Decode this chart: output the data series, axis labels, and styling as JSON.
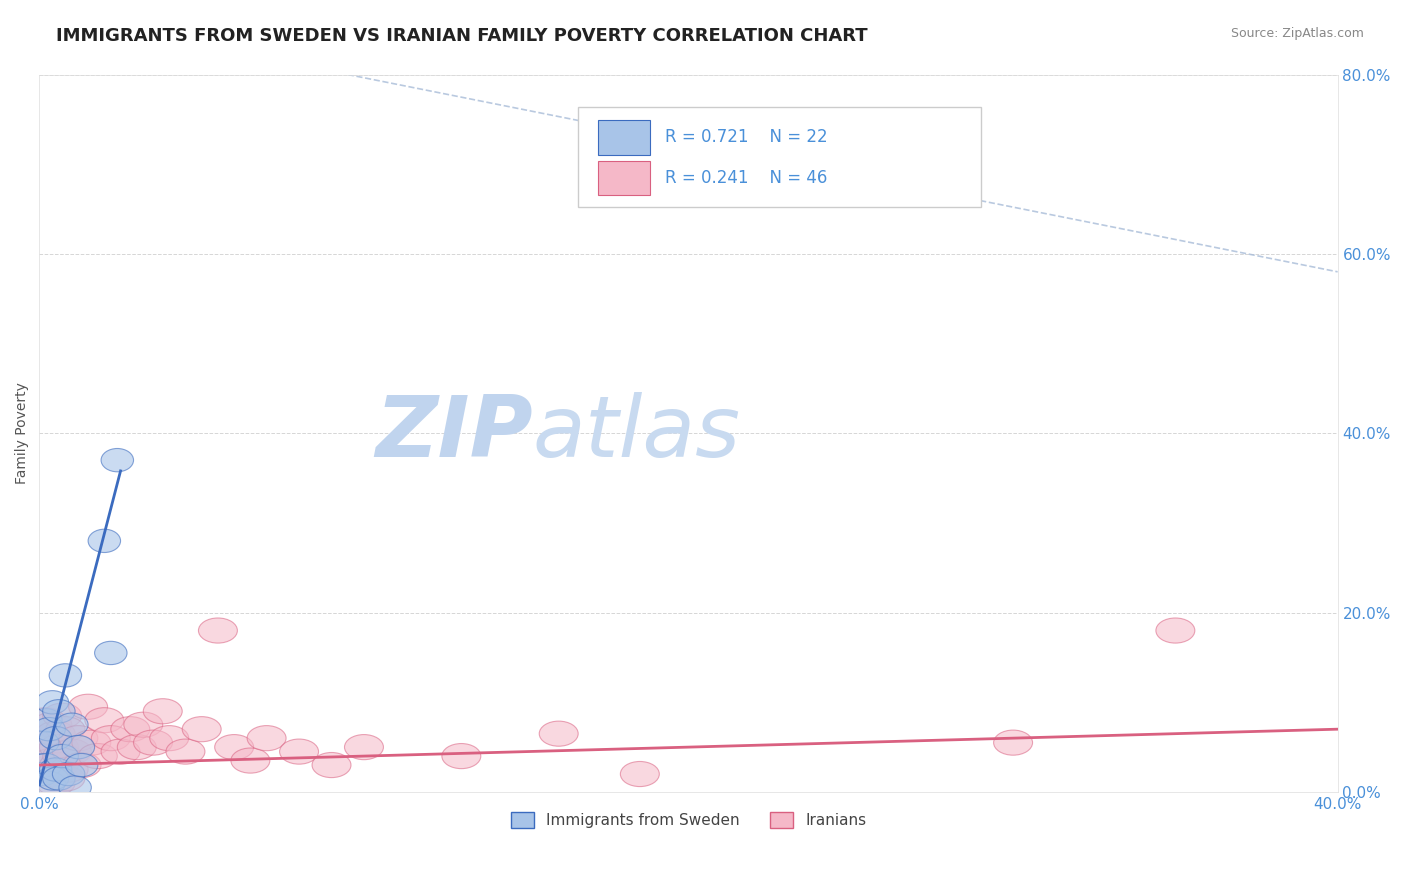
{
  "title": "IMMIGRANTS FROM SWEDEN VS IRANIAN FAMILY POVERTY CORRELATION CHART",
  "source_text": "Source: ZipAtlas.com",
  "ylabel": "Family Poverty",
  "xlim": [
    0.0,
    0.4
  ],
  "ylim": [
    0.0,
    0.8
  ],
  "xticks": [
    0.0,
    0.1,
    0.2,
    0.3,
    0.4
  ],
  "yticks": [
    0.0,
    0.2,
    0.4,
    0.6,
    0.8
  ],
  "xtick_labels": [
    "0.0%",
    "",
    "",
    "",
    "40.0%"
  ],
  "ytick_labels_right": [
    "0.0%",
    "20.0%",
    "40.0%",
    "60.0%",
    "80.0%"
  ],
  "legend_label1": "Immigrants from Sweden",
  "legend_label2": "Iranians",
  "r1": "0.721",
  "n1": "22",
  "r2": "0.241",
  "n2": "46",
  "color_blue": "#a8c4e8",
  "color_pink": "#f5b8c8",
  "color_line_blue": "#3b6bbf",
  "color_line_pink": "#d96080",
  "color_dashed": "#a8bcd8",
  "watermark_zip": "ZIP",
  "watermark_atlas": "atlas",
  "watermark_color_zip": "#c5d8f0",
  "watermark_color_atlas": "#c5d8f0",
  "title_color": "#222222",
  "title_fontsize": 13,
  "tick_label_color": "#4a90d9",
  "background_color": "#ffffff",
  "grid_color": "#cccccc",
  "sweden_points": [
    [
      0.001,
      0.02
    ],
    [
      0.001,
      0.055
    ],
    [
      0.002,
      0.03
    ],
    [
      0.002,
      0.08
    ],
    [
      0.003,
      0.01
    ],
    [
      0.003,
      0.07
    ],
    [
      0.004,
      0.015
    ],
    [
      0.004,
      0.1
    ],
    [
      0.005,
      0.025
    ],
    [
      0.005,
      0.06
    ],
    [
      0.006,
      0.015
    ],
    [
      0.006,
      0.09
    ],
    [
      0.007,
      0.04
    ],
    [
      0.008,
      0.13
    ],
    [
      0.009,
      0.02
    ],
    [
      0.01,
      0.075
    ],
    [
      0.011,
      0.005
    ],
    [
      0.012,
      0.05
    ],
    [
      0.013,
      0.03
    ],
    [
      0.02,
      0.28
    ],
    [
      0.022,
      0.155
    ],
    [
      0.024,
      0.37
    ]
  ],
  "iranian_points": [
    [
      0.001,
      0.025
    ],
    [
      0.001,
      0.06
    ],
    [
      0.002,
      0.04
    ],
    [
      0.002,
      0.08
    ],
    [
      0.003,
      0.02
    ],
    [
      0.003,
      0.055
    ],
    [
      0.004,
      0.035
    ],
    [
      0.004,
      0.075
    ],
    [
      0.005,
      0.01
    ],
    [
      0.005,
      0.065
    ],
    [
      0.006,
      0.03
    ],
    [
      0.006,
      0.05
    ],
    [
      0.007,
      0.04
    ],
    [
      0.007,
      0.085
    ],
    [
      0.008,
      0.015
    ],
    [
      0.008,
      0.07
    ],
    [
      0.009,
      0.025
    ],
    [
      0.01,
      0.045
    ],
    [
      0.012,
      0.06
    ],
    [
      0.013,
      0.03
    ],
    [
      0.015,
      0.095
    ],
    [
      0.016,
      0.055
    ],
    [
      0.018,
      0.04
    ],
    [
      0.02,
      0.08
    ],
    [
      0.022,
      0.06
    ],
    [
      0.025,
      0.045
    ],
    [
      0.028,
      0.07
    ],
    [
      0.03,
      0.05
    ],
    [
      0.032,
      0.075
    ],
    [
      0.035,
      0.055
    ],
    [
      0.038,
      0.09
    ],
    [
      0.04,
      0.06
    ],
    [
      0.045,
      0.045
    ],
    [
      0.05,
      0.07
    ],
    [
      0.055,
      0.18
    ],
    [
      0.06,
      0.05
    ],
    [
      0.065,
      0.035
    ],
    [
      0.07,
      0.06
    ],
    [
      0.08,
      0.045
    ],
    [
      0.09,
      0.03
    ],
    [
      0.1,
      0.05
    ],
    [
      0.13,
      0.04
    ],
    [
      0.16,
      0.065
    ],
    [
      0.185,
      0.02
    ],
    [
      0.3,
      0.055
    ],
    [
      0.35,
      0.18
    ]
  ],
  "dashed_line": [
    [
      0.095,
      0.8
    ],
    [
      0.4,
      0.58
    ]
  ],
  "blue_line_x": [
    0.0,
    0.025
  ],
  "blue_line_slope": 14.0,
  "blue_line_intercept": 0.008,
  "pink_line_x": [
    0.0,
    0.4
  ],
  "pink_line_slope": 0.1,
  "pink_line_intercept": 0.03
}
